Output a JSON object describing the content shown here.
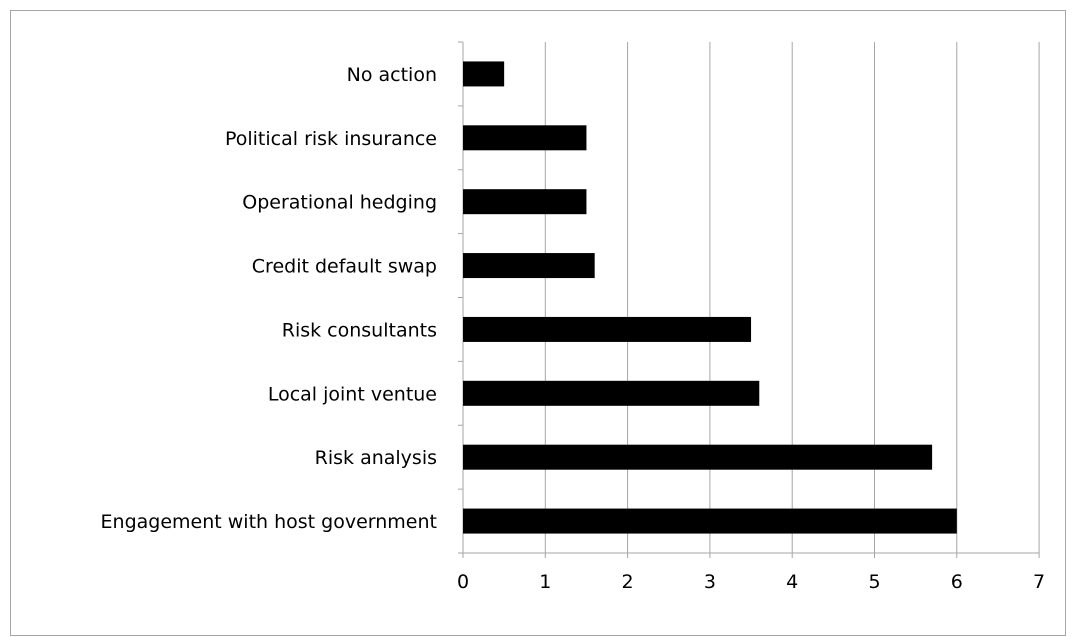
{
  "chart_data": {
    "type": "bar",
    "orientation": "horizontal",
    "categories": [
      "No action",
      "Political risk insurance",
      "Operational hedging",
      "Credit default swap",
      "Risk consultants",
      "Local joint ventue",
      "Risk analysis",
      "Engagement with host government"
    ],
    "values": [
      0.5,
      1.5,
      1.5,
      1.6,
      3.5,
      3.6,
      5.7,
      6.0
    ],
    "xlim": [
      0,
      7
    ],
    "xticks": [
      "0",
      "1",
      "2",
      "3",
      "4",
      "5",
      "6",
      "7"
    ],
    "grid": true,
    "legend": "none",
    "bar_color": "#000000",
    "grid_color": "#a6a6a6",
    "border_color": "#a6a6a6"
  }
}
